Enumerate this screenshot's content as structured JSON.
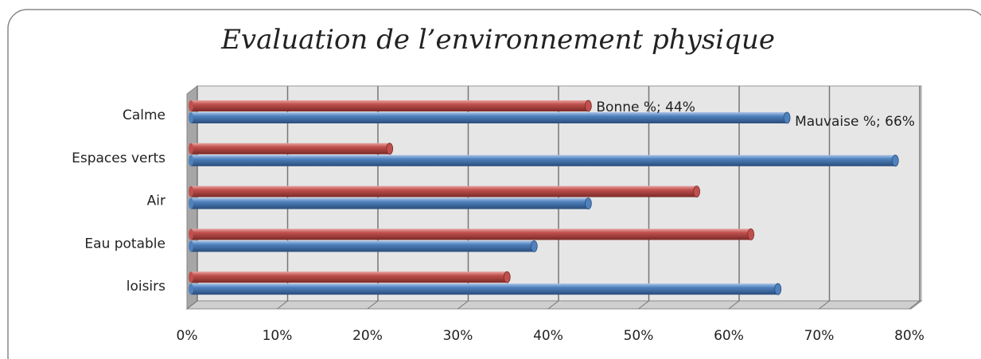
{
  "chart_data": {
    "type": "bar",
    "orientation": "horizontal",
    "title": "Evaluation de l’environnement physique",
    "categories": [
      "Calme",
      "Espaces verts",
      "Air",
      "Eau potable",
      "loisirs"
    ],
    "series": [
      {
        "name": "Bonne %",
        "color": "#c0504d",
        "values": [
          44,
          22,
          56,
          62,
          35
        ],
        "value_labels": [
          "Bonne %; 44%",
          null,
          null,
          null,
          null
        ]
      },
      {
        "name": "Mauvaise %",
        "color": "#4f81bd",
        "values": [
          66,
          78,
          44,
          38,
          65
        ],
        "value_labels": [
          "Mauvaise %; 66%",
          null,
          null,
          null,
          null
        ]
      }
    ],
    "xlim": [
      0,
      80
    ],
    "xticks": [
      {
        "value": 0,
        "label": "0%"
      },
      {
        "value": 10,
        "label": "10%"
      },
      {
        "value": 20,
        "label": "20%"
      },
      {
        "value": 30,
        "label": "30%"
      },
      {
        "value": 40,
        "label": "40%"
      },
      {
        "value": 50,
        "label": "50%"
      },
      {
        "value": 60,
        "label": "60%"
      },
      {
        "value": 70,
        "label": "70%"
      },
      {
        "value": 80,
        "label": "80%"
      }
    ],
    "grid": true
  }
}
